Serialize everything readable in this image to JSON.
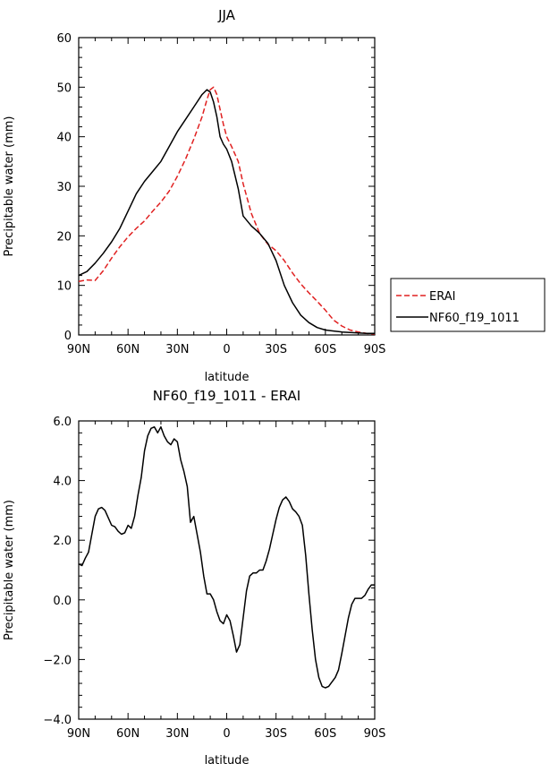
{
  "chart_data": [
    {
      "type": "line",
      "title": "JJA",
      "xlabel": "latitude",
      "ylabel": "Precipitable water (mm)",
      "xlim": [
        90,
        -90
      ],
      "ylim": [
        0,
        60
      ],
      "xticks": [
        90,
        60,
        30,
        0,
        -30,
        -60,
        -90
      ],
      "xtick_labels": [
        "90N",
        "60N",
        "30N",
        "0",
        "30S",
        "60S",
        "90S"
      ],
      "yticks": [
        0,
        10,
        20,
        30,
        40,
        50,
        60
      ],
      "ytick_labels": [
        "0",
        "10",
        "20",
        "30",
        "40",
        "50",
        "60"
      ],
      "legend": {
        "placement": "right",
        "entries": [
          "ERAI",
          "NF60_f19_1011"
        ]
      },
      "series": [
        {
          "name": "ERAI",
          "style": "dashed",
          "color": "#e02020",
          "x": [
            90,
            85,
            80,
            75,
            70,
            65,
            60,
            55,
            50,
            45,
            40,
            35,
            30,
            25,
            20,
            15,
            12,
            10,
            8,
            6,
            4,
            2,
            0,
            -3,
            -7,
            -10,
            -15,
            -20,
            -25,
            -30,
            -35,
            -40,
            -45,
            -50,
            -55,
            -60,
            -65,
            -70,
            -75,
            -80,
            -85,
            -90
          ],
          "y": [
            10.8,
            11.1,
            11.0,
            13.0,
            15.5,
            17.8,
            19.8,
            21.5,
            23.0,
            25.0,
            26.8,
            29.0,
            32.0,
            35.5,
            39.5,
            44.0,
            47.5,
            49.5,
            50.0,
            48.5,
            45.5,
            42.5,
            40.0,
            38.0,
            35.0,
            30.5,
            24.5,
            20.5,
            18.3,
            17.0,
            15.0,
            12.5,
            10.3,
            8.5,
            6.8,
            5.0,
            3.0,
            1.8,
            1.0,
            0.6,
            0.3,
            0.2
          ]
        },
        {
          "name": "NF60_f19_1011",
          "style": "solid",
          "color": "#000000",
          "x": [
            90,
            85,
            80,
            75,
            70,
            65,
            60,
            55,
            50,
            45,
            40,
            35,
            30,
            25,
            20,
            15,
            12,
            10,
            8,
            6,
            4,
            2,
            0,
            -3,
            -7,
            -10,
            -15,
            -20,
            -25,
            -30,
            -35,
            -40,
            -45,
            -50,
            -55,
            -60,
            -65,
            -70,
            -75,
            -80,
            -85,
            -90
          ],
          "y": [
            12.0,
            12.8,
            14.5,
            16.5,
            18.8,
            21.5,
            25.0,
            28.5,
            31.0,
            33.0,
            35.0,
            38.0,
            41.0,
            43.5,
            46.0,
            48.5,
            49.5,
            49.0,
            47.0,
            44.0,
            40.0,
            38.5,
            37.5,
            35.0,
            29.5,
            24.0,
            22.0,
            20.5,
            18.5,
            15.0,
            10.0,
            6.5,
            4.0,
            2.5,
            1.5,
            1.0,
            0.8,
            0.6,
            0.5,
            0.4,
            0.3,
            0.3
          ]
        }
      ]
    },
    {
      "type": "line",
      "title": "NF60_f19_1011 - ERAI",
      "xlabel": "latitude",
      "ylabel": "Precipitable water (mm)",
      "xlim": [
        90,
        -90
      ],
      "ylim": [
        -4.0,
        6.0
      ],
      "xticks": [
        90,
        60,
        30,
        0,
        -30,
        -60,
        -90
      ],
      "xtick_labels": [
        "90N",
        "60N",
        "30N",
        "0",
        "30S",
        "60S",
        "90S"
      ],
      "yticks": [
        -4.0,
        -2.0,
        0.0,
        2.0,
        4.0,
        6.0
      ],
      "ytick_labels": [
        "−4.0",
        "−2.0",
        "0.0",
        "2.0",
        "4.0",
        "6.0"
      ],
      "series": [
        {
          "name": "NF60_f19_1011 - ERAI",
          "style": "solid",
          "color": "#000000",
          "x": [
            90,
            88,
            86,
            84,
            82,
            80,
            78,
            76,
            74,
            72,
            70,
            68,
            66,
            64,
            62,
            60,
            58,
            56,
            54,
            52,
            50,
            48,
            46,
            44,
            42,
            40,
            38,
            36,
            34,
            32,
            30,
            28,
            26,
            24,
            22,
            20,
            18,
            16,
            14,
            12,
            10,
            8,
            6,
            4,
            2,
            0,
            -2,
            -4,
            -6,
            -8,
            -10,
            -12,
            -14,
            -16,
            -18,
            -20,
            -22,
            -24,
            -26,
            -28,
            -30,
            -32,
            -34,
            -36,
            -38,
            -40,
            -42,
            -44,
            -46,
            -48,
            -50,
            -52,
            -54,
            -56,
            -58,
            -60,
            -62,
            -64,
            -66,
            -68,
            -70,
            -72,
            -74,
            -76,
            -78,
            -80,
            -82,
            -84,
            -86,
            -88,
            -90
          ],
          "y": [
            1.2,
            1.15,
            1.4,
            1.6,
            2.2,
            2.8,
            3.05,
            3.1,
            3.0,
            2.75,
            2.5,
            2.45,
            2.3,
            2.2,
            2.25,
            2.5,
            2.4,
            2.8,
            3.5,
            4.1,
            5.0,
            5.5,
            5.75,
            5.8,
            5.6,
            5.8,
            5.5,
            5.3,
            5.2,
            5.4,
            5.3,
            4.7,
            4.3,
            3.8,
            2.6,
            2.8,
            2.2,
            1.6,
            0.8,
            0.2,
            0.2,
            0.0,
            -0.4,
            -0.7,
            -0.8,
            -0.5,
            -0.7,
            -1.2,
            -1.75,
            -1.5,
            -0.6,
            0.3,
            0.8,
            0.9,
            0.9,
            1.0,
            1.0,
            1.3,
            1.7,
            2.2,
            2.7,
            3.1,
            3.35,
            3.45,
            3.3,
            3.05,
            2.95,
            2.8,
            2.5,
            1.5,
            0.2,
            -1.0,
            -2.0,
            -2.6,
            -2.9,
            -2.95,
            -2.9,
            -2.75,
            -2.6,
            -2.35,
            -1.8,
            -1.2,
            -0.6,
            -0.15,
            0.05,
            0.05,
            0.05,
            0.15,
            0.35,
            0.5,
            0.5
          ]
        }
      ]
    }
  ]
}
